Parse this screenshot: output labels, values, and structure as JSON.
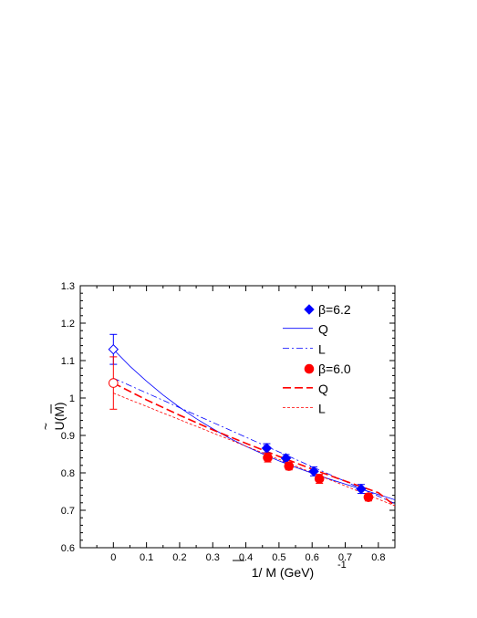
{
  "chart_data": {
    "type": "scatter",
    "xlabel": "1/ M (GeV)",
    "xlabel_sup": "-1",
    "ylabel": "U(M)",
    "xlim": [
      -0.1,
      0.85
    ],
    "ylim": [
      0.6,
      1.3
    ],
    "x_ticks": [
      0,
      0.1,
      0.2,
      0.3,
      0.4,
      0.5,
      0.6,
      0.7,
      0.8
    ],
    "x_tick_labels": [
      "0",
      "0.1",
      "0.2",
      "0.3",
      "0.4",
      "0.5",
      "0.6",
      "0.7",
      "0.8"
    ],
    "y_ticks": [
      0.6,
      0.7,
      0.8,
      0.9,
      1.0,
      1.1,
      1.2,
      1.3
    ],
    "y_tick_labels": [
      "0.6",
      "0.7",
      "0.8",
      "0.9",
      "1",
      "1.1",
      "1.2",
      "1.3"
    ],
    "legend_position": "top-right",
    "series": [
      {
        "name": "β=6.2",
        "kind": "points",
        "marker": "diamond",
        "color": "#0000ff",
        "points": [
          {
            "x": 0.463,
            "y": 0.866,
            "err": 0.012
          },
          {
            "x": 0.521,
            "y": 0.839,
            "err": 0.01
          },
          {
            "x": 0.605,
            "y": 0.804,
            "err": 0.012
          },
          {
            "x": 0.748,
            "y": 0.757,
            "err": 0.012
          }
        ],
        "extrapolated": {
          "x": 0.0,
          "y": 1.13,
          "err": 0.04
        }
      },
      {
        "name": "Q",
        "kind": "line",
        "style": "solid",
        "color": "#0000ff",
        "x": [
          0,
          0.05,
          0.1,
          0.15,
          0.2,
          0.25,
          0.3,
          0.35,
          0.4,
          0.45,
          0.5,
          0.55,
          0.6,
          0.65,
          0.7,
          0.75,
          0.8,
          0.85
        ],
        "y": [
          1.13,
          1.085,
          1.045,
          1.008,
          0.975,
          0.945,
          0.918,
          0.893,
          0.871,
          0.851,
          0.832,
          0.815,
          0.799,
          0.784,
          0.77,
          0.756,
          0.742,
          0.728
        ]
      },
      {
        "name": "L",
        "kind": "line",
        "style": "dashdot",
        "color": "#0000ff",
        "x": [
          0,
          0.85
        ],
        "y": [
          1.053,
          0.718
        ]
      },
      {
        "name": "β=6.0",
        "kind": "points",
        "marker": "circle",
        "color": "#ff0000",
        "points": [
          {
            "x": 0.466,
            "y": 0.841,
            "err": 0.012
          },
          {
            "x": 0.53,
            "y": 0.818,
            "err": 0.01
          },
          {
            "x": 0.622,
            "y": 0.784,
            "err": 0.012
          },
          {
            "x": 0.77,
            "y": 0.735,
            "err": 0.01
          }
        ],
        "extrapolated": {
          "x": 0.0,
          "y": 1.04,
          "err": 0.07
        }
      },
      {
        "name": "Q",
        "kind": "line",
        "style": "longdash",
        "color": "#ff0000",
        "x": [
          0,
          0.1,
          0.2,
          0.3,
          0.4,
          0.5,
          0.6,
          0.7,
          0.8,
          0.85
        ],
        "y": [
          1.04,
          0.995,
          0.954,
          0.915,
          0.879,
          0.844,
          0.81,
          0.778,
          0.747,
          0.712
        ]
      },
      {
        "name": "L",
        "kind": "line",
        "style": "shortdash",
        "color": "#ff0000",
        "x": [
          0,
          0.85
        ],
        "y": [
          1.013,
          0.712
        ]
      }
    ]
  }
}
